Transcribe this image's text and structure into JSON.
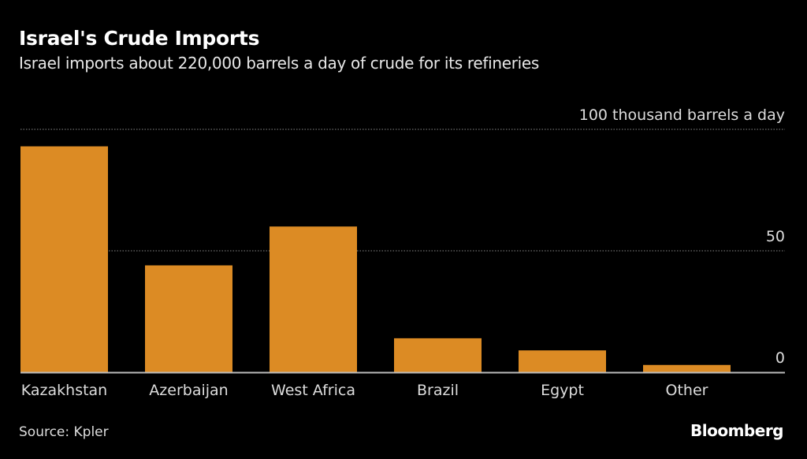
{
  "chart_data": {
    "type": "bar",
    "title": "Israel's Crude Imports",
    "subtitle": "Israel imports about 220,000 barrels a day of crude for its refineries",
    "ylabel": "100 thousand barrels a day",
    "categories": [
      "Kazakhstan",
      "Azerbaijan",
      "West Africa",
      "Brazil",
      "Egypt",
      "Other"
    ],
    "values": [
      93,
      44,
      60,
      14,
      9,
      3
    ],
    "ylim": [
      0,
      100
    ],
    "yticks": [
      "0",
      "50",
      "100 thousand barrels a day"
    ],
    "ytick_values": [
      0,
      50,
      100
    ],
    "grid": true,
    "bar_color": "#dc8b24",
    "source": "Source: Kpler",
    "brand": "Bloomberg"
  }
}
